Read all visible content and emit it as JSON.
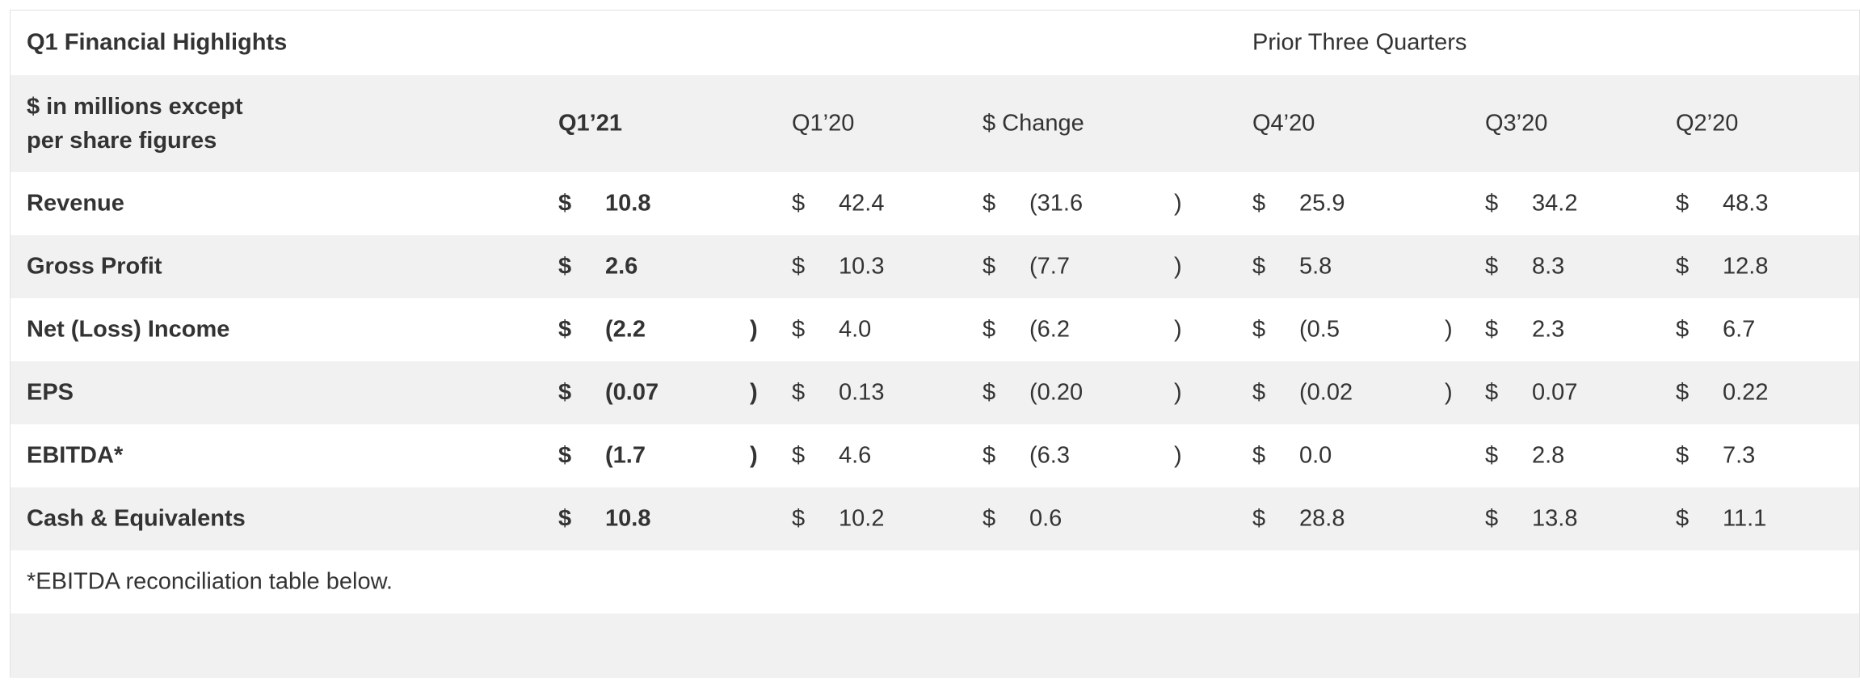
{
  "header": {
    "title": "Q1 Financial Highlights",
    "group_label": "Prior Three Quarters"
  },
  "subheader": {
    "units_line1": "$ in millions except",
    "units_line2": "per share figures",
    "columns": [
      "Q1’21",
      "Q1’20",
      "$ Change",
      "Q4’20",
      "Q3’20",
      "Q2’20"
    ]
  },
  "currency_symbol": "$",
  "rows": [
    {
      "label": "Revenue",
      "cells": [
        {
          "v": "10.8",
          "close": ""
        },
        {
          "v": "42.4",
          "close": ""
        },
        {
          "v": "(31.6",
          "close": ")"
        },
        {
          "v": "25.9",
          "close": ""
        },
        {
          "v": "34.2",
          "close": ""
        },
        {
          "v": "48.3",
          "close": ""
        }
      ]
    },
    {
      "label": "Gross Profit",
      "cells": [
        {
          "v": "2.6",
          "close": ""
        },
        {
          "v": "10.3",
          "close": ""
        },
        {
          "v": "(7.7",
          "close": ")"
        },
        {
          "v": "5.8",
          "close": ""
        },
        {
          "v": "8.3",
          "close": ""
        },
        {
          "v": "12.8",
          "close": ""
        }
      ]
    },
    {
      "label": "Net (Loss) Income",
      "cells": [
        {
          "v": "(2.2",
          "close": ")"
        },
        {
          "v": "4.0",
          "close": ""
        },
        {
          "v": "(6.2",
          "close": ")"
        },
        {
          "v": "(0.5",
          "close": ")"
        },
        {
          "v": "2.3",
          "close": ""
        },
        {
          "v": "6.7",
          "close": ""
        }
      ]
    },
    {
      "label": "EPS",
      "cells": [
        {
          "v": "(0.07",
          "close": ")"
        },
        {
          "v": "0.13",
          "close": ""
        },
        {
          "v": "(0.20",
          "close": ")"
        },
        {
          "v": "(0.02",
          "close": ")"
        },
        {
          "v": "0.07",
          "close": ""
        },
        {
          "v": "0.22",
          "close": ""
        }
      ]
    },
    {
      "label": "EBITDA*",
      "cells": [
        {
          "v": "(1.7",
          "close": ")"
        },
        {
          "v": "4.6",
          "close": ""
        },
        {
          "v": "(6.3",
          "close": ")"
        },
        {
          "v": "0.0",
          "close": ""
        },
        {
          "v": "2.8",
          "close": ""
        },
        {
          "v": "7.3",
          "close": ""
        }
      ]
    },
    {
      "label": "Cash & Equivalents",
      "cells": [
        {
          "v": "10.8",
          "close": ""
        },
        {
          "v": "10.2",
          "close": ""
        },
        {
          "v": "0.6",
          "close": ""
        },
        {
          "v": "28.8",
          "close": ""
        },
        {
          "v": "13.8",
          "close": ""
        },
        {
          "v": "11.1",
          "close": ""
        }
      ]
    }
  ],
  "footnote": "*EBITDA reconciliation table below."
}
